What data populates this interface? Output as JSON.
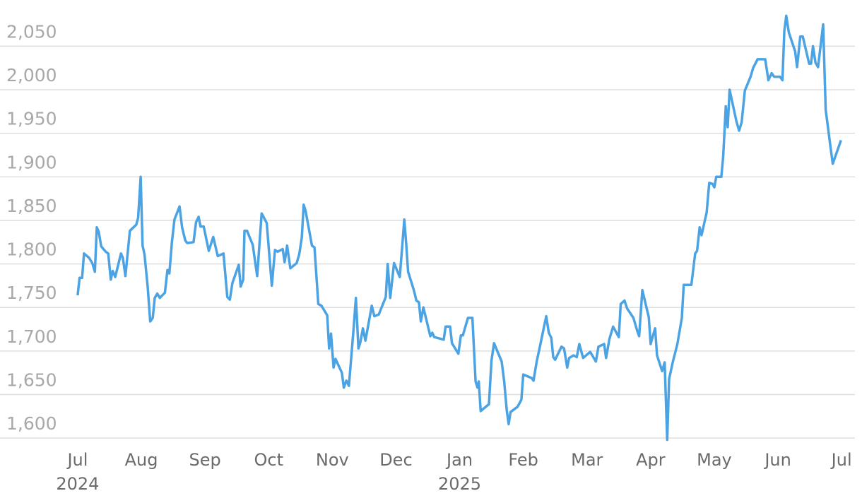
{
  "chart_data": {
    "type": "line",
    "x": [
      0,
      0.03,
      0.07,
      0.1,
      0.18,
      0.23,
      0.27,
      0.3,
      0.33,
      0.37,
      0.44,
      0.48,
      0.52,
      0.55,
      0.59,
      0.68,
      0.71,
      0.75,
      0.82,
      0.92,
      0.95,
      0.99,
      1.02,
      1.05,
      1.1,
      1.14,
      1.18,
      1.21,
      1.25,
      1.29,
      1.37,
      1.41,
      1.44,
      1.48,
      1.52,
      1.6,
      1.64,
      1.69,
      1.72,
      1.82,
      1.86,
      1.9,
      1.93,
      1.98,
      2.06,
      2.13,
      2.2,
      2.29,
      2.35,
      2.39,
      2.43,
      2.53,
      2.56,
      2.6,
      2.62,
      2.66,
      2.75,
      2.82,
      2.89,
      2.97,
      3.05,
      3.1,
      3.14,
      3.22,
      3.25,
      3.29,
      3.34,
      3.44,
      3.48,
      3.52,
      3.55,
      3.58,
      3.68,
      3.72,
      3.78,
      3.83,
      3.92,
      3.95,
      3.98,
      4.02,
      4.05,
      4.15,
      4.18,
      4.22,
      4.26,
      4.33,
      4.37,
      4.41,
      4.44,
      4.48,
      4.52,
      4.62,
      4.66,
      4.73,
      4.84,
      4.87,
      4.91,
      4.97,
      5.06,
      5.11,
      5.13,
      5.16,
      5.19,
      5.28,
      5.32,
      5.36,
      5.39,
      5.43,
      5.54,
      5.57,
      5.6,
      5.75,
      5.78,
      5.85,
      5.88,
      5.98,
      6.02,
      6.05,
      6.09,
      6.13,
      6.2,
      6.25,
      6.28,
      6.3,
      6.33,
      6.46,
      6.5,
      6.54,
      6.66,
      6.7,
      6.74,
      6.77,
      6.8,
      6.91,
      6.97,
      7.0,
      7.13,
      7.16,
      7.21,
      7.26,
      7.36,
      7.4,
      7.44,
      7.47,
      7.5,
      7.6,
      7.64,
      7.69,
      7.72,
      7.79,
      7.84,
      7.88,
      7.94,
      8.05,
      8.14,
      8.18,
      8.27,
      8.3,
      8.35,
      8.41,
      8.5,
      8.53,
      8.59,
      8.63,
      8.73,
      8.79,
      8.82,
      8.87,
      8.97,
      9.0,
      9.03,
      9.07,
      9.1,
      9.18,
      9.22,
      9.26,
      9.29,
      9.35,
      9.42,
      9.49,
      9.52,
      9.64,
      9.7,
      9.73,
      9.77,
      9.8,
      9.88,
      9.92,
      9.97,
      10.0,
      10.03,
      10.11,
      10.14,
      10.18,
      10.21,
      10.24,
      10.35,
      10.39,
      10.43,
      10.48,
      10.57,
      10.61,
      10.68,
      10.8,
      10.85,
      10.9,
      10.94,
      11.03,
      11.07,
      11.1,
      11.13,
      11.17,
      11.27,
      11.3,
      11.35,
      11.39,
      11.49,
      11.52,
      11.55,
      11.59,
      11.63,
      11.71,
      11.75,
      11.83,
      11.86,
      11.99
    ],
    "series": [
      {
        "color": "#4ba3e3",
        "values": [
          1764,
          1784,
          1784,
          1812,
          1807,
          1801,
          1791,
          1842,
          1837,
          1820,
          1814,
          1812,
          1782,
          1792,
          1785,
          1812,
          1807,
          1786,
          1838,
          1845,
          1853,
          1900,
          1821,
          1811,
          1774,
          1734,
          1738,
          1761,
          1766,
          1761,
          1767,
          1793,
          1789,
          1825,
          1851,
          1866,
          1842,
          1827,
          1824,
          1825,
          1848,
          1854,
          1843,
          1843,
          1815,
          1831,
          1809,
          1812,
          1762,
          1759,
          1778,
          1799,
          1774,
          1782,
          1838,
          1838,
          1822,
          1786,
          1858,
          1847,
          1775,
          1816,
          1814,
          1817,
          1802,
          1821,
          1795,
          1801,
          1811,
          1830,
          1868,
          1861,
          1821,
          1819,
          1754,
          1752,
          1741,
          1703,
          1720,
          1681,
          1691,
          1675,
          1658,
          1666,
          1660,
          1722,
          1761,
          1703,
          1710,
          1726,
          1712,
          1752,
          1740,
          1742,
          1762,
          1800,
          1761,
          1801,
          1785,
          1832,
          1851,
          1823,
          1791,
          1770,
          1758,
          1756,
          1734,
          1750,
          1717,
          1721,
          1716,
          1713,
          1728,
          1728,
          1709,
          1697,
          1718,
          1718,
          1728,
          1738,
          1738,
          1665,
          1658,
          1665,
          1631,
          1639,
          1689,
          1709,
          1688,
          1665,
          1632,
          1616,
          1630,
          1636,
          1644,
          1673,
          1669,
          1666,
          1688,
          1705,
          1740,
          1721,
          1715,
          1693,
          1690,
          1705,
          1703,
          1681,
          1692,
          1695,
          1693,
          1708,
          1692,
          1699,
          1688,
          1705,
          1708,
          1692,
          1713,
          1728,
          1716,
          1754,
          1758,
          1749,
          1738,
          1723,
          1717,
          1770,
          1739,
          1708,
          1716,
          1726,
          1695,
          1677,
          1687,
          1598,
          1668,
          1688,
          1708,
          1738,
          1776,
          1776,
          1812,
          1815,
          1842,
          1833,
          1859,
          1893,
          1892,
          1888,
          1900,
          1900,
          1924,
          1981,
          1957,
          2000,
          1963,
          1953,
          1963,
          1999,
          2015,
          2025,
          2035,
          2035,
          2011,
          2019,
          2015,
          2015,
          2011,
          2068,
          2085,
          2066,
          2044,
          2026,
          2061,
          2061,
          2030,
          2030,
          2050,
          2031,
          2026,
          2075,
          1977,
          1932,
          1915,
          1942
        ]
      }
    ],
    "xlim": [
      -1.22,
      12.32
    ],
    "xticks": [
      {
        "value": 0,
        "label": "Jul"
      },
      {
        "value": 1,
        "label": "Aug"
      },
      {
        "value": 2,
        "label": "Sep"
      },
      {
        "value": 3,
        "label": "Oct"
      },
      {
        "value": 4,
        "label": "Nov"
      },
      {
        "value": 5,
        "label": "Dec"
      },
      {
        "value": 6,
        "label": "Jan"
      },
      {
        "value": 7,
        "label": "Feb"
      },
      {
        "value": 8,
        "label": "Mar"
      },
      {
        "value": 9,
        "label": "Apr"
      },
      {
        "value": 10,
        "label": "May"
      },
      {
        "value": 11,
        "label": "Jun"
      },
      {
        "value": 12,
        "label": "Jul"
      }
    ],
    "year_labels": [
      {
        "value": 0,
        "label": "2024"
      },
      {
        "value": 6,
        "label": "2025"
      }
    ],
    "ylim": [
      1592,
      2099
    ],
    "yticks": [
      {
        "value": 1600,
        "label": "1,600"
      },
      {
        "value": 1650,
        "label": "1,650"
      },
      {
        "value": 1700,
        "label": "1,700"
      },
      {
        "value": 1750,
        "label": "1,750"
      },
      {
        "value": 1800,
        "label": "1,800"
      },
      {
        "value": 1850,
        "label": "1,850"
      },
      {
        "value": 1900,
        "label": "1,900"
      },
      {
        "value": 1950,
        "label": "1,950"
      },
      {
        "value": 2000,
        "label": "2,000"
      },
      {
        "value": 2050,
        "label": "2,050"
      }
    ],
    "grid": true
  }
}
